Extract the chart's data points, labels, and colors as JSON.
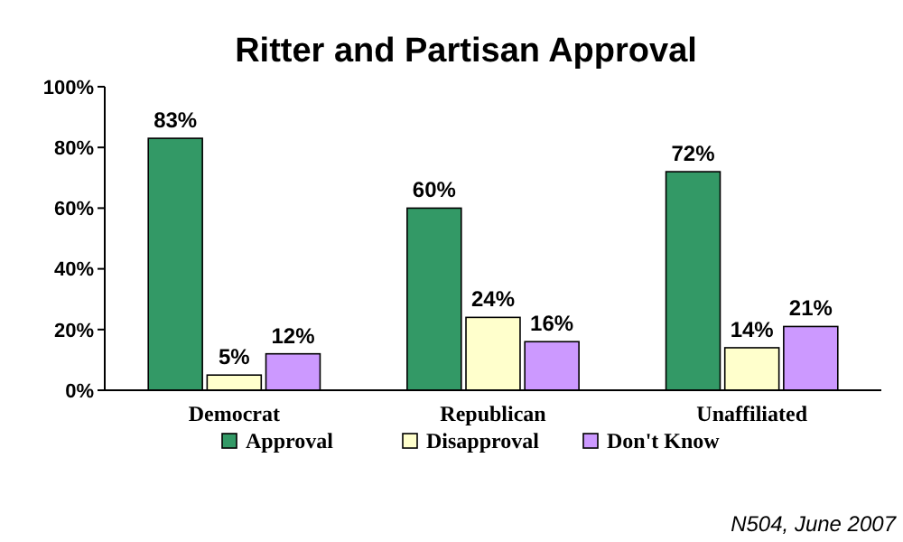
{
  "chart_data": {
    "type": "bar",
    "title": "Ritter and Partisan Approval",
    "categories": [
      "Democrat",
      "Republican",
      "Unaffiliated"
    ],
    "series": [
      {
        "name": "Approval",
        "color": "#339966",
        "values": [
          83,
          60,
          72
        ],
        "value_labels": [
          "83%",
          "60%",
          "72%"
        ]
      },
      {
        "name": "Disapproval",
        "color": "#ffffcc",
        "values": [
          5,
          24,
          14
        ],
        "value_labels": [
          "5%",
          "24%",
          "14%"
        ]
      },
      {
        "name": "Don't Know",
        "color": "#cc99ff",
        "values": [
          12,
          16,
          21
        ],
        "value_labels": [
          "12%",
          "16%",
          "21%"
        ]
      }
    ],
    "ylim": [
      0,
      100
    ],
    "yticks": [
      {
        "value": 0,
        "label": "0%"
      },
      {
        "value": 20,
        "label": "20%"
      },
      {
        "value": 40,
        "label": "40%"
      },
      {
        "value": 60,
        "label": "60%"
      },
      {
        "value": 80,
        "label": "80%"
      },
      {
        "value": 100,
        "label": "100%"
      }
    ],
    "grid": false,
    "legend": "bottom",
    "annotations": [
      "N504, June 2007"
    ]
  }
}
